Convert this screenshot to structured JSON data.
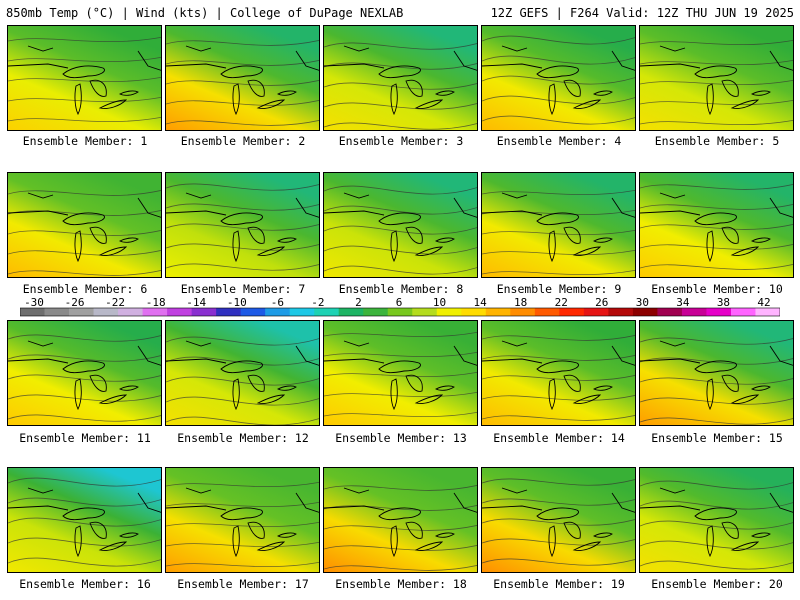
{
  "header": {
    "left": "850mb Temp (°C) | Wind (kts) | College of DuPage NEXLAB",
    "right": "12Z GEFS | F264 Valid: 12Z THU JUN 19 2025"
  },
  "members": [
    {
      "label": "Ensemble Member: 1",
      "warmth": 0.55,
      "cool_north": 0.45
    },
    {
      "label": "Ensemble Member: 2",
      "warmth": 0.75,
      "cool_north": 0.65
    },
    {
      "label": "Ensemble Member: 3",
      "warmth": 0.45,
      "cool_north": 0.7
    },
    {
      "label": "Ensemble Member: 4",
      "warmth": 0.65,
      "cool_north": 0.55
    },
    {
      "label": "Ensemble Member: 5",
      "warmth": 0.45,
      "cool_north": 0.45
    },
    {
      "label": "Ensemble Member: 6",
      "warmth": 0.65,
      "cool_north": 0.35
    },
    {
      "label": "Ensemble Member: 7",
      "warmth": 0.35,
      "cool_north": 0.7
    },
    {
      "label": "Ensemble Member: 8",
      "warmth": 0.4,
      "cool_north": 0.7
    },
    {
      "label": "Ensemble Member: 9",
      "warmth": 0.65,
      "cool_north": 0.65
    },
    {
      "label": "Ensemble Member: 10",
      "warmth": 0.6,
      "cool_north": 0.65
    },
    {
      "label": "Ensemble Member: 11",
      "warmth": 0.6,
      "cool_north": 0.55
    },
    {
      "label": "Ensemble Member: 12",
      "warmth": 0.45,
      "cool_north": 0.85
    },
    {
      "label": "Ensemble Member: 13",
      "warmth": 0.6,
      "cool_north": 0.4
    },
    {
      "label": "Ensemble Member: 14",
      "warmth": 0.65,
      "cool_north": 0.45
    },
    {
      "label": "Ensemble Member: 15",
      "warmth": 0.75,
      "cool_north": 0.7
    },
    {
      "label": "Ensemble Member: 16",
      "warmth": 0.4,
      "cool_north": 0.95
    },
    {
      "label": "Ensemble Member: 17",
      "warmth": 0.75,
      "cool_north": 0.3
    },
    {
      "label": "Ensemble Member: 18",
      "warmth": 0.8,
      "cool_north": 0.3
    },
    {
      "label": "Ensemble Member: 19",
      "warmth": 0.8,
      "cool_north": 0.4
    },
    {
      "label": "Ensemble Member: 20",
      "warmth": 0.45,
      "cool_north": 0.6
    }
  ],
  "colorbar": {
    "labels": [
      "-30",
      "-26",
      "-22",
      "-18",
      "-14",
      "-10",
      "-6",
      "-2",
      "2",
      "6",
      "10",
      "14",
      "18",
      "22",
      "26",
      "30",
      "34",
      "38",
      "42"
    ],
    "colors": [
      "#6e6e6e",
      "#8a8a8a",
      "#a0a0a0",
      "#b8b8c8",
      "#d0b0e0",
      "#e070f0",
      "#c040e0",
      "#8a30d0",
      "#3030c0",
      "#1e5ae6",
      "#1e9be6",
      "#1ec8e6",
      "#1ed2b4",
      "#1eb464",
      "#3cb43c",
      "#78c81e",
      "#b4dc1e",
      "#f0f000",
      "#ffdc00",
      "#ffb400",
      "#ff8c00",
      "#ff5a00",
      "#ff2800",
      "#e61414",
      "#b40a0a",
      "#8c0000",
      "#a00050",
      "#c80096",
      "#e600c8",
      "#ff64ff",
      "#ffb4ff"
    ]
  }
}
